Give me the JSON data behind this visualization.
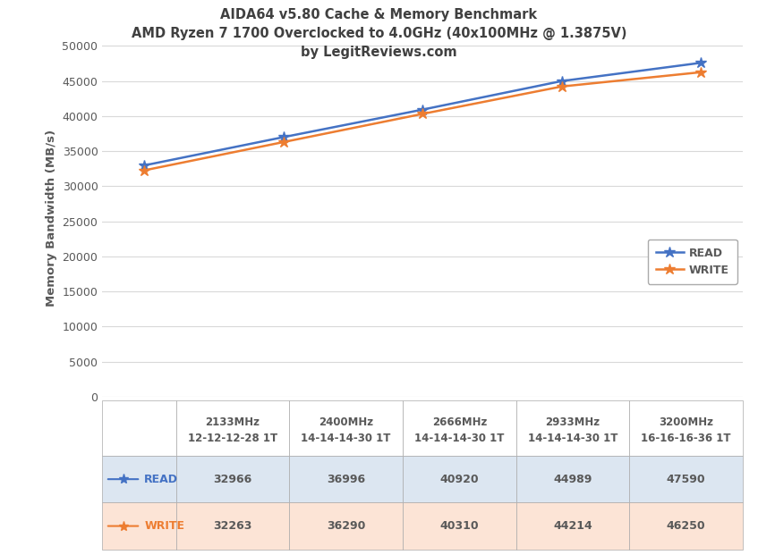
{
  "title_line1": "AIDA64 v5.80 Cache & Memory Benchmark",
  "title_line2": "AMD Ryzen 7 1700 Overclocked to 4.0GHz (40x100MHz @ 1.3875V)",
  "title_line3": "by LegitReviews.com",
  "ylabel": "Memory Bandwidth (MB/s)",
  "x_labels_top": [
    "2133MHz",
    "2400MHz",
    "2666MHz",
    "2933MHz",
    "3200MHz"
  ],
  "x_labels_bot": [
    "12-12-12-28 1T",
    "14-14-14-30 1T",
    "14-14-14-30 1T",
    "14-14-14-30 1T",
    "16-16-16-36 1T"
  ],
  "x_positions": [
    0,
    1,
    2,
    3,
    4
  ],
  "read_values": [
    32966,
    36996,
    40920,
    44989,
    47590
  ],
  "write_values": [
    32263,
    36290,
    40310,
    44214,
    46250
  ],
  "read_color": "#4472C4",
  "write_color": "#ED7D31",
  "ylim": [
    0,
    51000
  ],
  "yticks": [
    0,
    5000,
    10000,
    15000,
    20000,
    25000,
    30000,
    35000,
    40000,
    45000,
    50000
  ],
  "background_color": "#FFFFFF",
  "title_color": "#404040",
  "axis_color": "#595959",
  "grid_color": "#D9D9D9",
  "legend_read_label": "READ",
  "legend_write_label": "WRITE"
}
